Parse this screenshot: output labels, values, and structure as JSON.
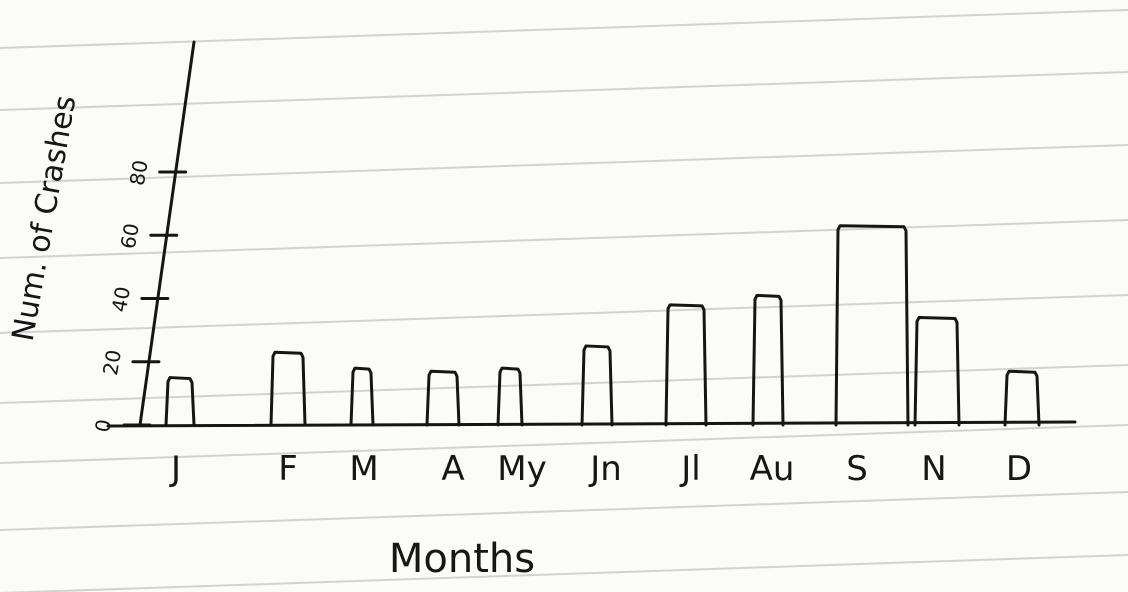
{
  "chart_data": {
    "type": "bar",
    "title": "",
    "xlabel": "Months",
    "ylabel": "Num. of Crashes",
    "categories": [
      "J",
      "F",
      "M",
      "A",
      "My",
      "Jn",
      "Jl",
      "Au",
      "S",
      "N",
      "D"
    ],
    "values": [
      15,
      23,
      18,
      17,
      18,
      25,
      38,
      41,
      63,
      34,
      17
    ],
    "ylim": [
      0,
      80
    ],
    "yticks": [
      0,
      20,
      40,
      60,
      80
    ],
    "ytick_labels": [
      "0",
      "20",
      "40",
      "60",
      "80"
    ],
    "grid": false,
    "legend": "none"
  },
  "colors": {
    "ink": "#151515",
    "paper": "#fbfbfa",
    "rule_lines": "#d2d2d2"
  }
}
